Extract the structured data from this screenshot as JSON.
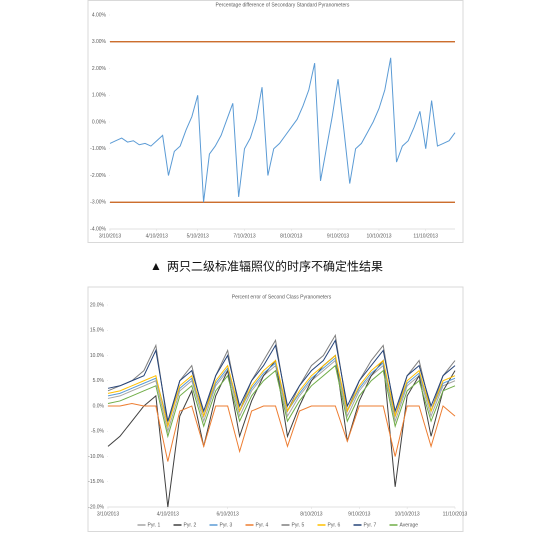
{
  "caption": "两只二级标准辐照仪的时序不确定性结果",
  "chart_data": [
    {
      "type": "line",
      "title": "Percentage difference of Secondary Standard Pyranometers",
      "ylim": [
        -4,
        4
      ],
      "yticks": [
        {
          "value": 4,
          "label": "4.00%"
        },
        {
          "value": 3,
          "label": "3.00%"
        },
        {
          "value": 2,
          "label": "2.00%"
        },
        {
          "value": 1,
          "label": "1.00%"
        },
        {
          "value": 0,
          "label": "0.00%"
        },
        {
          "value": -1,
          "label": "-1.00%"
        },
        {
          "value": -2,
          "label": "-2.00%"
        },
        {
          "value": -3,
          "label": "-3.00%"
        },
        {
          "value": -4,
          "label": "-4.00%"
        }
      ],
      "xlim": [
        0,
        59
      ],
      "xticks": [
        {
          "value": 0,
          "label": "3/10/2013"
        },
        {
          "value": 8,
          "label": "4/10/2013"
        },
        {
          "value": 15,
          "label": "5/10/2013"
        },
        {
          "value": 23,
          "label": "7/10/2013"
        },
        {
          "value": 31,
          "label": "8/10/2013"
        },
        {
          "value": 39,
          "label": "9/10/2013"
        },
        {
          "value": 46,
          "label": "10/10/2013"
        },
        {
          "value": 54,
          "label": "11/10/2013"
        }
      ],
      "grid": false,
      "reference_lines": [
        3,
        -3
      ],
      "reference_color": "#c55a11",
      "series": [
        {
          "color": "#5b9bd5",
          "values": [
            -0.8,
            -0.7,
            -0.6,
            -0.75,
            -0.7,
            -0.85,
            -0.8,
            -0.9,
            -0.7,
            -0.5,
            -2.0,
            -1.1,
            -0.9,
            -0.3,
            0.2,
            1.0,
            -3.0,
            -1.2,
            -0.9,
            -0.5,
            0.1,
            0.7,
            -2.8,
            -1.0,
            -0.6,
            0.1,
            1.3,
            -2.0,
            -1.0,
            -0.8,
            -0.5,
            -0.2,
            0.1,
            0.6,
            1.2,
            2.2,
            -2.2,
            -1.0,
            0.2,
            1.6,
            -0.3,
            -2.3,
            -1.0,
            -0.8,
            -0.4,
            0.0,
            0.5,
            1.2,
            2.4,
            -1.5,
            -0.9,
            -0.7,
            -0.2,
            0.4,
            -1.0,
            0.8,
            -0.9,
            -0.8,
            -0.7,
            -0.4
          ]
        }
      ]
    },
    {
      "type": "line",
      "title": "Percent error of Second Class Pyranometers",
      "ylim": [
        -20,
        20
      ],
      "yticks": [
        {
          "value": 20,
          "label": "20.0%"
        },
        {
          "value": 15,
          "label": "15.0%"
        },
        {
          "value": 10,
          "label": "10.0%"
        },
        {
          "value": 5,
          "label": "5.0%"
        },
        {
          "value": 0,
          "label": "0.0%"
        },
        {
          "value": -5,
          "label": "-5.0%"
        },
        {
          "value": -10,
          "label": "-10.0%"
        },
        {
          "value": -15,
          "label": "-15.0%"
        },
        {
          "value": -20,
          "label": "-20.0%"
        }
      ],
      "xlim": [
        0,
        29
      ],
      "xticks": [
        {
          "value": 0,
          "label": "3/10/2013"
        },
        {
          "value": 5,
          "label": "4/10/2013"
        },
        {
          "value": 10,
          "label": "6/10/2013"
        },
        {
          "value": 17,
          "label": "8/10/2013"
        },
        {
          "value": 21,
          "label": "9/10/2013"
        },
        {
          "value": 25,
          "label": "10/10/2013"
        },
        {
          "value": 29,
          "label": "11/10/2013"
        }
      ],
      "grid": false,
      "legend": "bottom",
      "series": [
        {
          "name": "Pyr. 1",
          "color": "#a5a5a5",
          "values": [
            1.5,
            2,
            3,
            4,
            5,
            -5,
            3,
            5,
            -3,
            4,
            7,
            -2,
            3,
            6,
            8,
            -2,
            2,
            5,
            7,
            9,
            -2,
            3,
            6,
            8,
            -3,
            4,
            6,
            -2,
            4,
            5
          ]
        },
        {
          "name": "Pyr. 2",
          "color": "#404040",
          "values": [
            -8,
            -6,
            -3,
            0,
            2,
            -20,
            -2,
            3,
            -8,
            2,
            7,
            -6,
            1,
            6,
            9,
            -6,
            0,
            5,
            8,
            10,
            -7,
            1,
            6,
            9,
            -16,
            2,
            6,
            -6,
            3,
            7
          ]
        },
        {
          "name": "Pyr. 3",
          "color": "#5b9bd5",
          "values": [
            2,
            2.5,
            3.5,
            4.5,
            5.5,
            -3,
            3.5,
            5.5,
            -2,
            4.5,
            7.5,
            -1,
            3.5,
            6.5,
            8.5,
            -1,
            2.5,
            5.5,
            7.5,
            9.5,
            -1,
            3.5,
            6.5,
            8.5,
            -2,
            4.5,
            6.5,
            -1,
            4.5,
            5.5
          ]
        },
        {
          "name": "Pyr. 4",
          "color": "#ed7d31",
          "values": [
            0,
            0,
            0.5,
            0,
            0,
            -11,
            -1,
            0,
            -8,
            0,
            0,
            -9,
            -1,
            0,
            0,
            -8,
            -1,
            0,
            0,
            0,
            -7,
            0,
            0,
            0,
            -10,
            0,
            0,
            -8,
            0,
            -2
          ]
        },
        {
          "name": "Pyr. 5",
          "color": "#7f7f7f",
          "values": [
            3,
            4,
            5,
            7,
            12,
            -4,
            5,
            8,
            -2,
            6,
            11,
            -1,
            5,
            9,
            13,
            -1,
            4,
            8,
            10,
            14,
            -1,
            5,
            9,
            12,
            -2,
            6,
            9,
            -1,
            6,
            9
          ]
        },
        {
          "name": "Pyr. 6",
          "color": "#ffc000",
          "values": [
            2.5,
            3,
            4,
            5,
            6,
            -4,
            4,
            6,
            -2,
            5,
            8,
            -1,
            4,
            7,
            9,
            -1,
            3,
            6,
            8,
            10,
            -1,
            4,
            7,
            9,
            -2,
            5,
            7,
            -1,
            5,
            6
          ]
        },
        {
          "name": "Pyr. 7",
          "color": "#264478",
          "values": [
            3.5,
            4,
            5,
            6,
            11,
            -3,
            5,
            7,
            -1,
            6,
            10,
            0,
            5,
            8,
            12,
            0,
            4,
            7,
            9,
            13,
            0,
            5,
            8,
            11,
            -1,
            6,
            8,
            0,
            6,
            8
          ]
        },
        {
          "name": "Average",
          "color": "#70ad47",
          "values": [
            0.5,
            1,
            2,
            3,
            4,
            -6,
            2,
            4,
            -4,
            3,
            6,
            -3,
            2,
            5,
            7,
            -3,
            1,
            4,
            6,
            8,
            -3,
            2,
            5,
            7,
            -4,
            3,
            5,
            -3,
            3,
            4
          ]
        }
      ]
    }
  ]
}
